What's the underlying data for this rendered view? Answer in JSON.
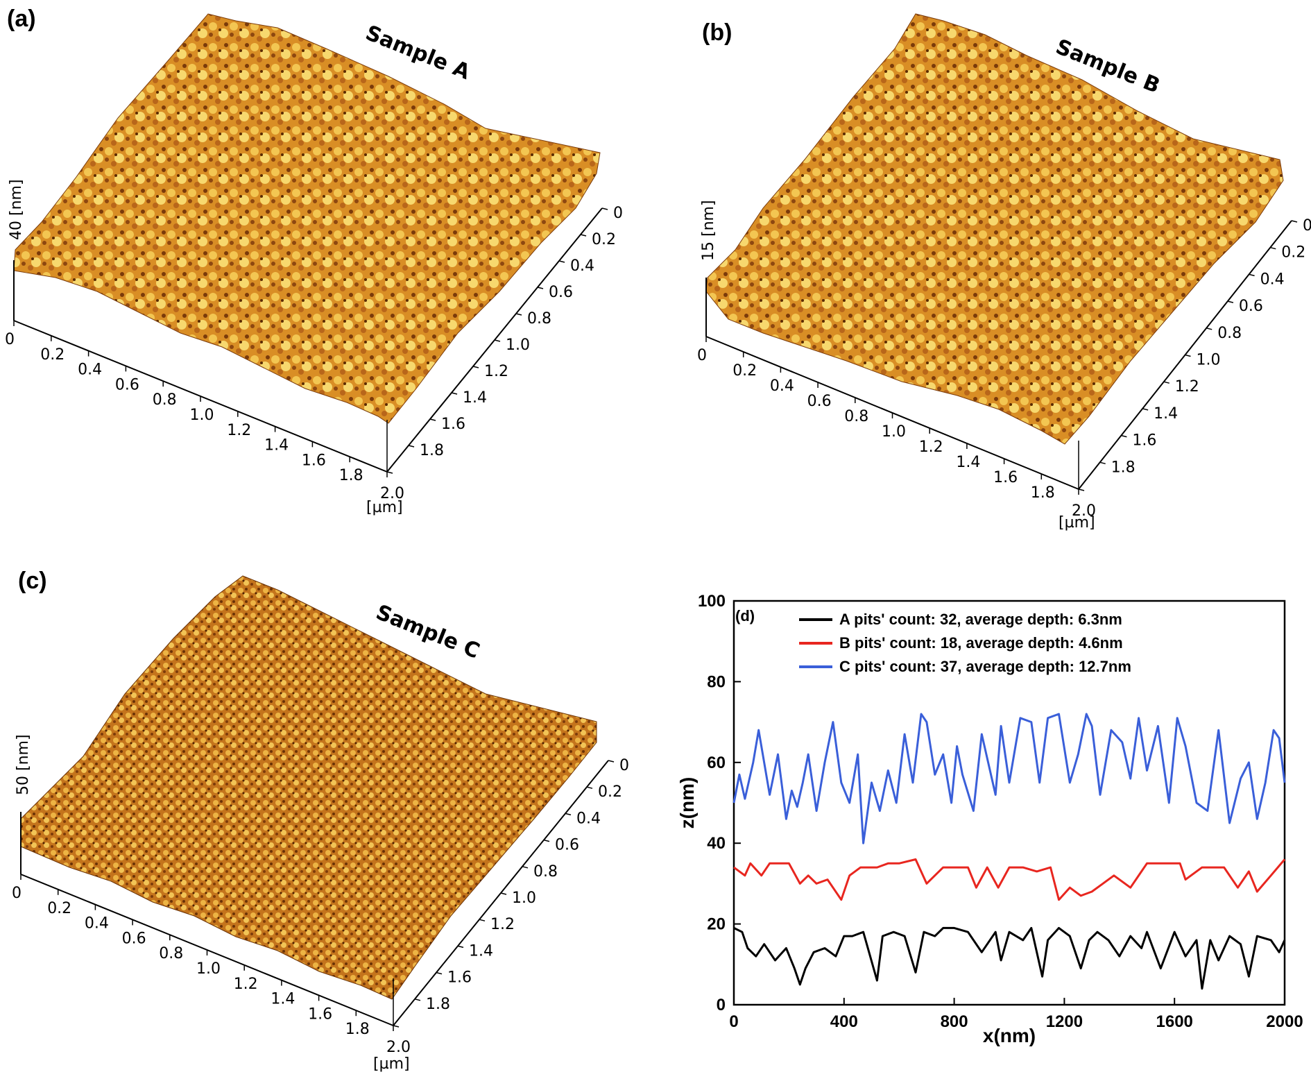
{
  "figure": {
    "panels": [
      {
        "label": "(a)",
        "sample": "Sample A",
        "z_label": "40 [nm]",
        "unit_label": "[µm]"
      },
      {
        "label": "(b)",
        "sample": "Sample B",
        "z_label": "15 [nm]",
        "unit_label": "[µm]"
      },
      {
        "label": "(c)",
        "sample": "Sample C",
        "z_label": "50 [nm]",
        "unit_label": "[µm]"
      },
      {
        "label": "(d)"
      }
    ],
    "afm_ticks": [
      "0",
      "0.2",
      "0.4",
      "0.6",
      "0.8",
      "1.0",
      "1.2",
      "1.4",
      "1.6",
      "1.8",
      "2.0"
    ],
    "colors": {
      "afm_dark": "#5a2a00",
      "afm_mid": "#c8781a",
      "afm_light": "#f6d56a"
    }
  },
  "chart_data": {
    "type": "line",
    "xlabel": "x(nm)",
    "ylabel": "z(nm)",
    "xlim": [
      0,
      2000
    ],
    "ylim": [
      0,
      100
    ],
    "x_ticks": [
      0,
      400,
      800,
      1200,
      1600,
      2000
    ],
    "y_ticks": [
      0,
      20,
      40,
      60,
      80,
      100
    ],
    "legend_position": "top",
    "series": [
      {
        "name": "A pits' count: 32, average depth: 6.3nm",
        "color": "#000000",
        "x": [
          0,
          30,
          50,
          80,
          110,
          150,
          190,
          220,
          240,
          260,
          290,
          330,
          370,
          400,
          430,
          470,
          520,
          540,
          580,
          620,
          660,
          690,
          730,
          760,
          800,
          850,
          900,
          950,
          970,
          1000,
          1050,
          1080,
          1120,
          1140,
          1180,
          1220,
          1260,
          1290,
          1320,
          1360,
          1400,
          1440,
          1480,
          1500,
          1550,
          1600,
          1640,
          1680,
          1700,
          1730,
          1760,
          1800,
          1840,
          1870,
          1900,
          1950,
          1980,
          2000
        ],
        "y": [
          19,
          18,
          14,
          12,
          15,
          11,
          14,
          9,
          5,
          9,
          13,
          14,
          12,
          17,
          17,
          18,
          6,
          17,
          18,
          17,
          8,
          18,
          17,
          19,
          19,
          18,
          13,
          18,
          11,
          18,
          16,
          19,
          7,
          16,
          19,
          17,
          9,
          16,
          18,
          16,
          12,
          17,
          14,
          18,
          9,
          18,
          12,
          16,
          4,
          16,
          11,
          17,
          15,
          7,
          17,
          16,
          13,
          16
        ]
      },
      {
        "name": "B pits' count: 18, average depth: 4.6nm",
        "color": "#e8261f",
        "x": [
          0,
          40,
          60,
          100,
          130,
          200,
          240,
          270,
          300,
          340,
          390,
          420,
          460,
          520,
          560,
          600,
          660,
          700,
          760,
          850,
          880,
          920,
          960,
          1000,
          1050,
          1100,
          1150,
          1180,
          1220,
          1260,
          1300,
          1340,
          1380,
          1440,
          1480,
          1500,
          1560,
          1620,
          1640,
          1700,
          1780,
          1830,
          1870,
          1900,
          1950,
          2000
        ],
        "y": [
          34,
          32,
          35,
          32,
          35,
          35,
          30,
          32,
          30,
          31,
          26,
          32,
          34,
          34,
          35,
          35,
          36,
          30,
          34,
          34,
          29,
          34,
          29,
          34,
          34,
          33,
          34,
          26,
          29,
          27,
          28,
          30,
          32,
          29,
          33,
          35,
          35,
          35,
          31,
          34,
          34,
          29,
          33,
          28,
          32,
          36
        ]
      },
      {
        "name": "C pits' count: 37, average depth: 12.7nm",
        "color": "#3a5fd9",
        "x": [
          0,
          20,
          40,
          70,
          90,
          130,
          160,
          190,
          210,
          230,
          250,
          270,
          300,
          330,
          360,
          390,
          420,
          450,
          470,
          500,
          530,
          560,
          590,
          620,
          650,
          680,
          700,
          730,
          760,
          790,
          810,
          830,
          870,
          900,
          950,
          970,
          1000,
          1040,
          1080,
          1110,
          1140,
          1180,
          1220,
          1250,
          1280,
          1300,
          1330,
          1370,
          1410,
          1440,
          1470,
          1500,
          1540,
          1580,
          1610,
          1640,
          1680,
          1720,
          1760,
          1800,
          1840,
          1870,
          1900,
          1930,
          1960,
          1980,
          2000
        ],
        "y": [
          50,
          57,
          51,
          60,
          68,
          52,
          62,
          46,
          53,
          49,
          55,
          62,
          48,
          60,
          70,
          55,
          50,
          62,
          40,
          55,
          48,
          58,
          50,
          67,
          55,
          72,
          70,
          57,
          62,
          50,
          64,
          57,
          48,
          67,
          52,
          69,
          55,
          71,
          70,
          55,
          71,
          72,
          55,
          62,
          72,
          69,
          52,
          68,
          65,
          56,
          71,
          58,
          69,
          50,
          71,
          64,
          50,
          48,
          68,
          45,
          56,
          60,
          46,
          55,
          68,
          66,
          55
        ]
      }
    ]
  }
}
